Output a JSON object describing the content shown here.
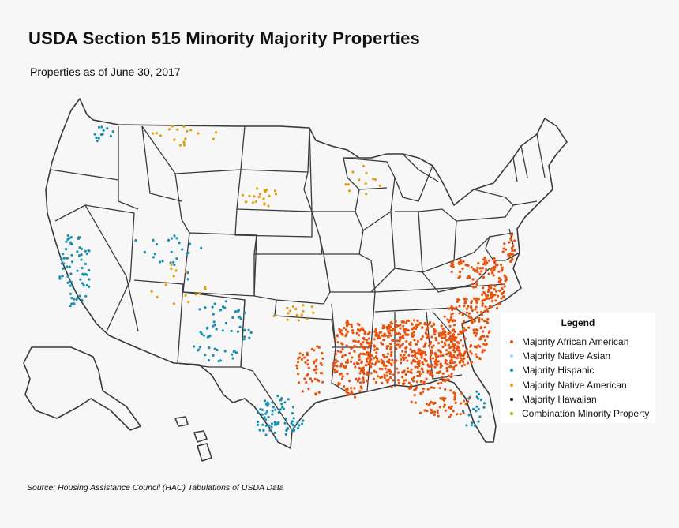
{
  "title": "USDA Section 515 Minority Majority Properties",
  "subtitle": "Properties as of June 30, 2017",
  "source": "Source:  Housing Assistance Council (HAC) Tabulations of  USDA Data",
  "legend": {
    "title": "Legend",
    "items": [
      {
        "label": "Majority African American",
        "color": "#e8540e"
      },
      {
        "label": "Majority Native Asian",
        "color": "#9fd6f0"
      },
      {
        "label": "Majority Hispanic",
        "color": "#1a8fb0"
      },
      {
        "label": "Majority Native American",
        "color": "#e0a010"
      },
      {
        "label": "Majority Hawaiian",
        "color": "#111111"
      },
      {
        "label": "Combination Minority Property",
        "color": "#a8a820"
      }
    ]
  }
}
